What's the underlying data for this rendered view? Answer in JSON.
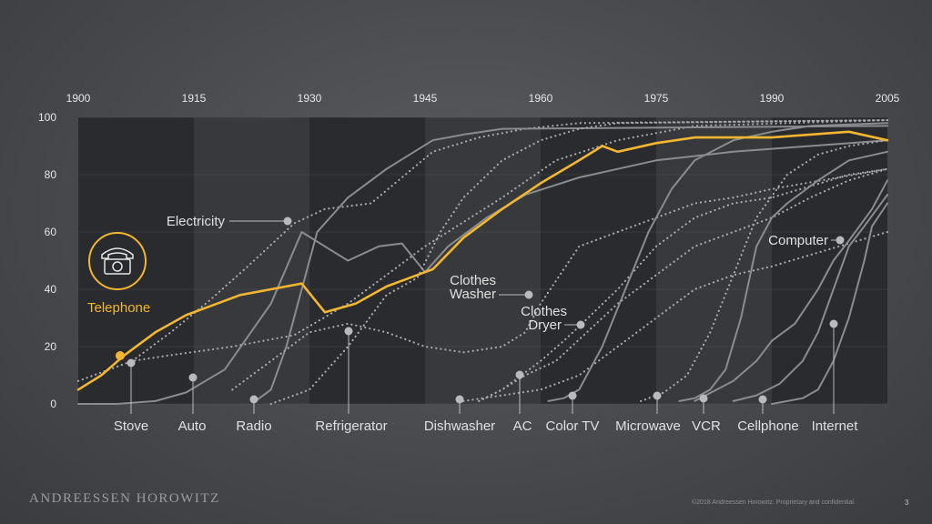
{
  "brand": "ANDREESSEN HOROWITZ",
  "footer": "©2018 Andreessen Horowitz. Proprietary and confidential.",
  "page_number": "3",
  "colors": {
    "highlight": "#f2b632",
    "line": "#8a8c90",
    "dots": "#a6a8ac",
    "marker": "#b8babd",
    "band_dark": "#2a2b2e",
    "band_light": "#38393c"
  },
  "icon": "telephone-icon",
  "chart_data": {
    "type": "line",
    "title": "",
    "xlabel": "",
    "ylabel": "",
    "xlim": [
      1900,
      2005
    ],
    "ylim": [
      0,
      100
    ],
    "x_ticks": [
      "1900",
      "1915",
      "1930",
      "1945",
      "1960",
      "1975",
      "1990",
      "2005"
    ],
    "y_ticks": [
      "0",
      "20",
      "40",
      "60",
      "80",
      "100"
    ],
    "grid": true,
    "category_labels": [
      "Stove",
      "Auto",
      "Radio",
      "Refrigerator",
      "Dishwasher",
      "AC",
      "Color TV",
      "Microwave",
      "VCR",
      "Cellphone",
      "Internet"
    ],
    "annotations": [
      "Electricity",
      "Telephone",
      "Clothes",
      "Washer",
      "Clothes",
      "Dryer",
      "Computer"
    ],
    "series": [
      {
        "name": "Telephone",
        "style": "solid",
        "highlight": true,
        "x": [
          1900,
          1903,
          1906,
          1910,
          1914,
          1918,
          1921,
          1925,
          1929,
          1932,
          1936,
          1940,
          1944,
          1946,
          1950,
          1955,
          1960,
          1965,
          1968,
          1970,
          1975,
          1980,
          1985,
          1990,
          1995,
          2000,
          2005
        ],
        "y": [
          5,
          10,
          17,
          25,
          31,
          35,
          38,
          40,
          42,
          32,
          35,
          41,
          45,
          47,
          58,
          68,
          77,
          85,
          90,
          88,
          91,
          93,
          93,
          93,
          94,
          95,
          92
        ]
      },
      {
        "name": "Electricity",
        "style": "dotted",
        "x": [
          1907,
          1912,
          1917,
          1922,
          1928,
          1932,
          1938,
          1946,
          1952,
          1958,
          1965,
          2005
        ],
        "y": [
          15,
          25,
          36,
          48,
          63,
          68,
          70,
          88,
          93,
          96,
          98,
          99
        ]
      },
      {
        "name": "Auto",
        "style": "solid",
        "x": [
          1900,
          1905,
          1910,
          1914,
          1919,
          1925,
          1929,
          1932,
          1935,
          1939,
          1942,
          1945,
          1948,
          1953,
          1958,
          1965,
          1970,
          1975,
          1985,
          1995,
          2005
        ],
        "y": [
          0,
          0,
          1,
          4,
          12,
          35,
          60,
          55,
          50,
          55,
          56,
          46,
          55,
          65,
          73,
          79,
          82,
          85,
          88,
          90,
          92
        ]
      },
      {
        "name": "Stove",
        "style": "dotted",
        "x": [
          1900,
          1907,
          1912,
          1920,
          1928,
          1935,
          1945,
          1955,
          1962,
          1970,
          1980,
          2005
        ],
        "y": [
          8,
          15,
          17,
          20,
          24,
          35,
          55,
          72,
          85,
          92,
          97,
          99
        ]
      },
      {
        "name": "Radio",
        "style": "solid",
        "x": [
          1923,
          1925,
          1927,
          1929,
          1931,
          1935,
          1940,
          1946,
          1950,
          1955,
          2005
        ],
        "y": [
          1,
          5,
          20,
          40,
          60,
          72,
          82,
          92,
          94,
          96,
          97
        ]
      },
      {
        "name": "Refrigerator",
        "style": "dotted",
        "x": [
          1925,
          1930,
          1935,
          1940,
          1944,
          1947,
          1950,
          1955,
          1960,
          1965,
          1970,
          2005
        ],
        "y": [
          0,
          5,
          20,
          38,
          44,
          60,
          72,
          85,
          92,
          96,
          98,
          99
        ]
      },
      {
        "name": "Dishwasher",
        "style": "dotted",
        "x": [
          1950,
          1955,
          1960,
          1965,
          1970,
          1975,
          1980,
          1985,
          1990,
          1995,
          2000,
          2005
        ],
        "y": [
          1,
          3,
          5,
          10,
          20,
          30,
          40,
          45,
          48,
          52,
          56,
          60
        ]
      },
      {
        "name": "AC",
        "style": "dotted",
        "x": [
          1952,
          1955,
          1958,
          1962,
          1966,
          1970,
          1975,
          1980,
          1985,
          1990,
          1995,
          2000,
          2005
        ],
        "y": [
          1,
          5,
          10,
          15,
          25,
          35,
          45,
          55,
          60,
          65,
          72,
          78,
          82
        ]
      },
      {
        "name": "Clothes Washer",
        "style": "dotted",
        "x": [
          1920,
          1925,
          1930,
          1935,
          1940,
          1945,
          1950,
          1955,
          1958,
          1960,
          1965,
          1970,
          1975,
          1980,
          1985,
          1990,
          2005
        ],
        "y": [
          5,
          15,
          25,
          28,
          25,
          20,
          18,
          20,
          25,
          35,
          55,
          60,
          65,
          70,
          72,
          75,
          82
        ]
      },
      {
        "name": "Clothes Dryer",
        "style": "dotted",
        "x": [
          1952,
          1955,
          1960,
          1963,
          1965,
          1970,
          1975,
          1980,
          1985,
          1990,
          1995,
          2000,
          2005
        ],
        "y": [
          1,
          5,
          15,
          22,
          27,
          40,
          55,
          65,
          70,
          72,
          76,
          80,
          82
        ]
      },
      {
        "name": "Color TV",
        "style": "solid",
        "x": [
          1961,
          1963,
          1965,
          1968,
          1971,
          1974,
          1977,
          1980,
          1985,
          1990,
          1995,
          2005
        ],
        "y": [
          1,
          2,
          5,
          20,
          40,
          60,
          75,
          85,
          92,
          95,
          97,
          98
        ]
      },
      {
        "name": "Microwave",
        "style": "dotted",
        "x": [
          1973,
          1976,
          1979,
          1982,
          1985,
          1988,
          1992,
          1996,
          2000,
          2005
        ],
        "y": [
          1,
          4,
          10,
          25,
          45,
          65,
          80,
          87,
          90,
          92
        ]
      },
      {
        "name": "VCR",
        "style": "solid",
        "x": [
          1978,
          1980,
          1982,
          1984,
          1986,
          1988,
          1990,
          1992,
          1996,
          2000,
          2005
        ],
        "y": [
          1,
          2,
          5,
          12,
          30,
          55,
          65,
          70,
          78,
          85,
          88
        ]
      },
      {
        "name": "Cellphone",
        "style": "solid",
        "x": [
          1985,
          1988,
          1991,
          1994,
          1996,
          1998,
          2000,
          2002,
          2005
        ],
        "y": [
          1,
          3,
          7,
          15,
          25,
          40,
          55,
          62,
          73
        ]
      },
      {
        "name": "Computer",
        "style": "solid",
        "x": [
          1980,
          1985,
          1988,
          1990,
          1993,
          1996,
          1998,
          2000,
          2003,
          2005
        ],
        "y": [
          1,
          8,
          15,
          22,
          28,
          40,
          50,
          57,
          68,
          78
        ]
      },
      {
        "name": "Internet",
        "style": "solid",
        "x": [
          1990,
          1992,
          1994,
          1996,
          1998,
          2000,
          2002,
          2003,
          2005
        ],
        "y": [
          0,
          1,
          2,
          5,
          15,
          30,
          50,
          62,
          70
        ]
      }
    ]
  }
}
